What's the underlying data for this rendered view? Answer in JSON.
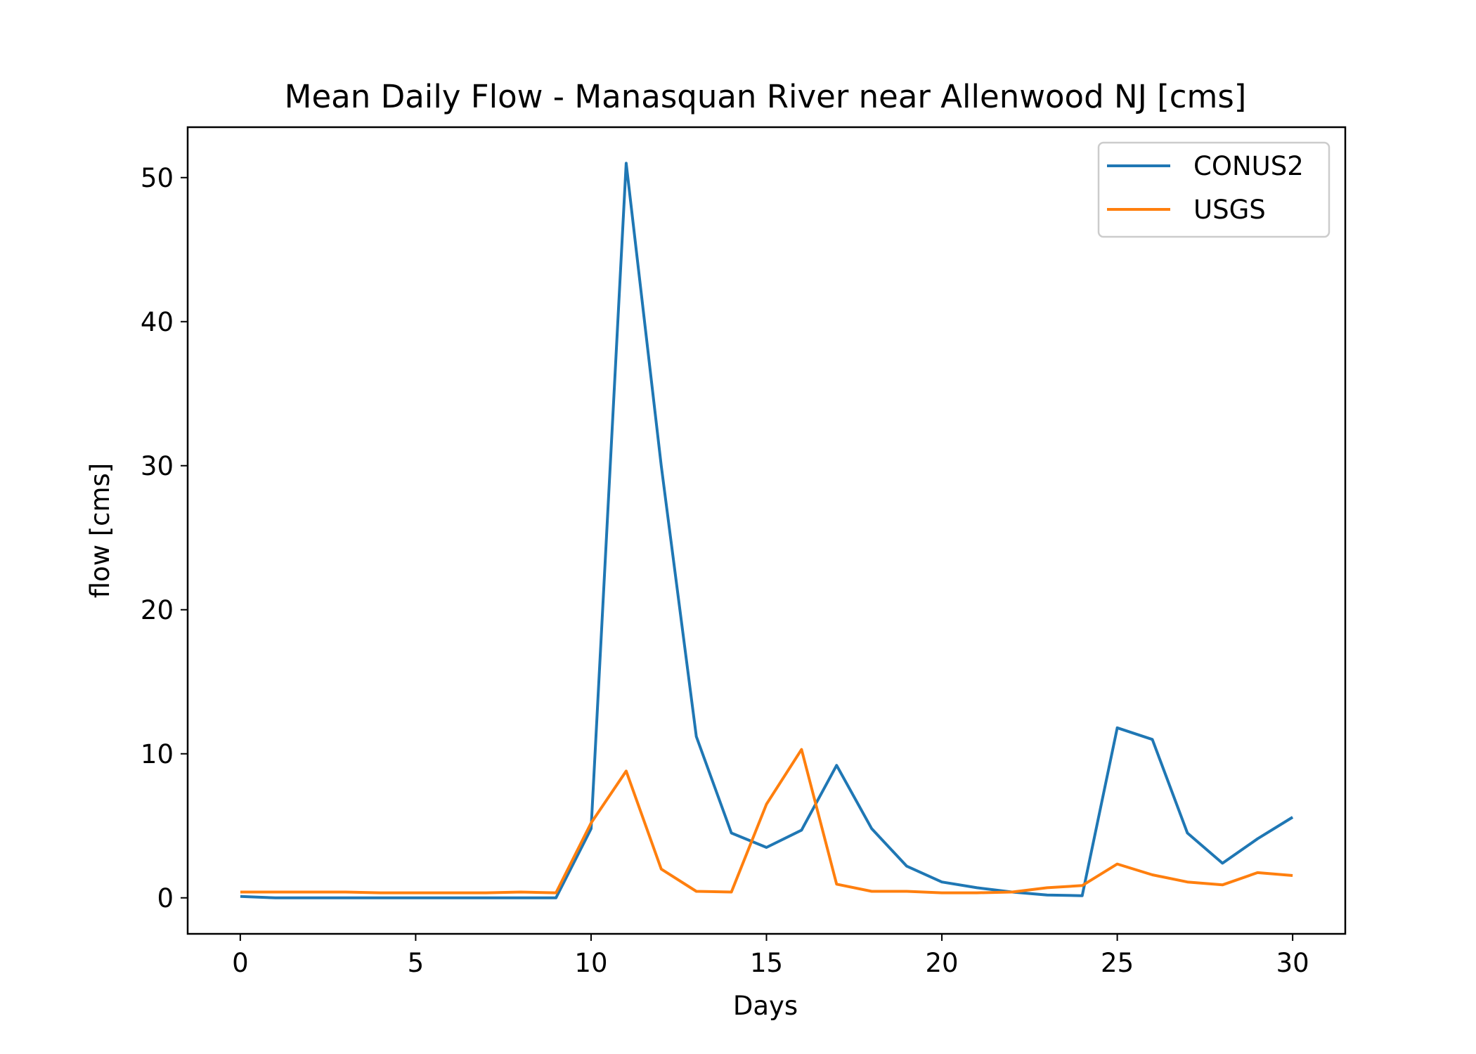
{
  "chart_data": {
    "type": "line",
    "title": "Mean Daily Flow - Manasquan River near Allenwood NJ [cms]",
    "xlabel": "Days",
    "ylabel": "flow [cms]",
    "xlim": [
      -1.5,
      31.5
    ],
    "ylim": [
      -2.5,
      53.5
    ],
    "xticks": [
      0,
      5,
      10,
      15,
      20,
      25,
      30
    ],
    "yticks": [
      0,
      10,
      20,
      30,
      40,
      50
    ],
    "grid": false,
    "legend": "top-right",
    "x": [
      0,
      1,
      2,
      3,
      4,
      5,
      6,
      7,
      8,
      9,
      10,
      11,
      12,
      13,
      14,
      15,
      16,
      17,
      18,
      19,
      20,
      21,
      22,
      23,
      24,
      25,
      26,
      27,
      28,
      29,
      30
    ],
    "series": [
      {
        "name": "CONUS2",
        "color": "#1f77b4",
        "values": [
          0.1,
          0.0,
          0.0,
          0.0,
          0.0,
          0.0,
          0.0,
          0.0,
          0.0,
          0.0,
          4.8,
          51.0,
          30.0,
          11.2,
          4.5,
          3.5,
          4.7,
          9.2,
          4.8,
          2.2,
          1.1,
          0.7,
          0.4,
          0.2,
          0.15,
          11.8,
          11.0,
          4.5,
          2.4,
          4.1,
          5.6
        ]
      },
      {
        "name": "USGS",
        "color": "#ff7f0e",
        "values": [
          0.4,
          0.4,
          0.4,
          0.4,
          0.35,
          0.35,
          0.35,
          0.35,
          0.4,
          0.35,
          5.2,
          8.8,
          2.0,
          0.45,
          0.4,
          6.5,
          10.3,
          0.95,
          0.45,
          0.45,
          0.35,
          0.35,
          0.4,
          0.7,
          0.85,
          2.35,
          1.6,
          1.1,
          0.9,
          1.75,
          1.55
        ]
      }
    ]
  }
}
